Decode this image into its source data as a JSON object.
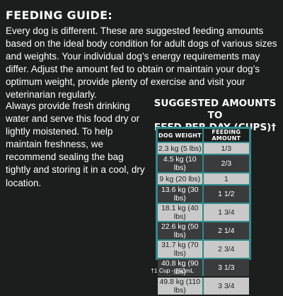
{
  "title": "FEEDING GUIDE:",
  "intro": "Every dog is different. These are suggested feeding amounts based on the ideal body condition for adult dogs of various sizes and weights. Your individual dog’s energy requirements may differ. Adjust the amount fed to obtain or maintain your dog’s optimum weight, provide plenty of exercise and visit your veterinarian regularly.",
  "left_paragraph": "Always provide fresh drinking water and serve this food dry or lightly moistened. To help maintain freshness, we recommend sealing the bag tightly and storing it in a cool, dry location.",
  "table_heading": {
    "line1": "SUGGESTED AMOUNTS TO",
    "line2": "FEED PER DAY (CUPS)†"
  },
  "table": {
    "headers": [
      "DOG WEIGHT",
      "FEEDING AMOUNT"
    ],
    "rows": [
      {
        "weight": "2.3 kg (5 lbs)",
        "amount": "1/3",
        "shade": "light"
      },
      {
        "weight": "4.5 kg (10 lbs)",
        "amount": "2/3",
        "shade": "dark"
      },
      {
        "weight": "9 kg (20 lbs)",
        "amount": "1",
        "shade": "light"
      },
      {
        "weight": "13.6 kg (30 lbs)",
        "amount": "1 1/2",
        "shade": "dark"
      },
      {
        "weight": "18.1 kg (40 lbs)",
        "amount": "1 3/4",
        "shade": "light"
      },
      {
        "weight": "22.6 kg (50 lbs)",
        "amount": "2 1/4",
        "shade": "dark"
      },
      {
        "weight": "31.7 kg (70 lbs)",
        "amount": "2 3/4",
        "shade": "light"
      },
      {
        "weight": "40.8 kg (90 lbs)",
        "amount": "3 1/3",
        "shade": "dark"
      },
      {
        "weight": "49.8 kg (110 lbs)",
        "amount": "3 3/4",
        "shade": "light"
      }
    ]
  },
  "footnote": "†1 Cup - 250mL",
  "colors": {
    "background": "#1b1e1d",
    "accent_teal": "#2f8a8c",
    "row_light": "#c9c9c9",
    "row_dark": "#3a3b3c"
  }
}
